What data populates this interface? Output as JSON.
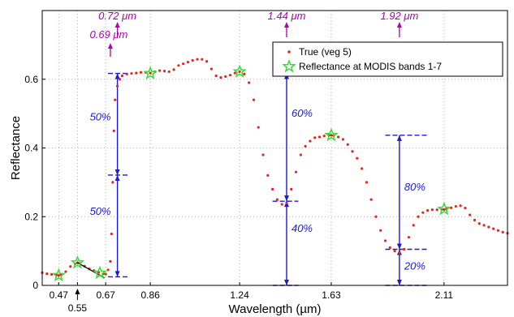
{
  "chart_data": {
    "type": "scatter",
    "xlabel": "Wavelength (µm)",
    "ylabel": "Reflectance",
    "xlim": [
      0.4,
      2.38
    ],
    "ylim": [
      0,
      0.8
    ],
    "x_tick_values": [
      0.47,
      0.55,
      0.67,
      0.86,
      1.24,
      1.63,
      2.11
    ],
    "x_tick_labels": [
      "0.47",
      "0.55",
      "0.67",
      "0.86",
      "1.24",
      "1.63",
      "2.11"
    ],
    "y_ticks": [
      0,
      0.2,
      0.4,
      0.6
    ],
    "y_tick_labels": [
      "0",
      "0.2",
      "0.4",
      "0.6"
    ],
    "grid": true,
    "legend_position": "top-right",
    "legend": [
      "True (veg 5)",
      "Reflectance at MODIS bands 1-7"
    ],
    "series": [
      {
        "name": "True (veg 5)",
        "color": "#e8241c",
        "x": [
          0.4,
          0.42,
          0.44,
          0.46,
          0.47,
          0.48,
          0.5,
          0.52,
          0.54,
          0.55,
          0.56,
          0.58,
          0.6,
          0.62,
          0.64,
          0.66,
          0.67,
          0.68,
          0.69,
          0.695,
          0.7,
          0.705,
          0.71,
          0.72,
          0.73,
          0.74,
          0.76,
          0.78,
          0.8,
          0.82,
          0.84,
          0.86,
          0.88,
          0.9,
          0.92,
          0.94,
          0.96,
          0.98,
          1.0,
          1.02,
          1.04,
          1.06,
          1.08,
          1.1,
          1.12,
          1.14,
          1.16,
          1.18,
          1.2,
          1.22,
          1.24,
          1.26,
          1.28,
          1.3,
          1.32,
          1.34,
          1.36,
          1.38,
          1.4,
          1.42,
          1.44,
          1.46,
          1.48,
          1.5,
          1.52,
          1.54,
          1.56,
          1.58,
          1.6,
          1.62,
          1.63,
          1.64,
          1.66,
          1.68,
          1.7,
          1.72,
          1.74,
          1.76,
          1.78,
          1.8,
          1.82,
          1.84,
          1.86,
          1.88,
          1.9,
          1.92,
          1.94,
          1.96,
          1.98,
          2.0,
          2.02,
          2.04,
          2.06,
          2.08,
          2.1,
          2.11,
          2.12,
          2.14,
          2.16,
          2.18,
          2.2,
          2.22,
          2.24,
          2.26,
          2.28,
          2.3,
          2.32,
          2.34,
          2.36,
          2.38
        ],
        "y": [
          0.037,
          0.034,
          0.032,
          0.03,
          0.029,
          0.031,
          0.04,
          0.055,
          0.063,
          0.066,
          0.064,
          0.056,
          0.048,
          0.043,
          0.038,
          0.034,
          0.033,
          0.045,
          0.07,
          0.15,
          0.3,
          0.45,
          0.54,
          0.58,
          0.6,
          0.61,
          0.615,
          0.617,
          0.618,
          0.62,
          0.62,
          0.618,
          0.622,
          0.625,
          0.624,
          0.622,
          0.628,
          0.64,
          0.645,
          0.65,
          0.655,
          0.658,
          0.658,
          0.652,
          0.63,
          0.61,
          0.605,
          0.608,
          0.612,
          0.618,
          0.622,
          0.615,
          0.59,
          0.54,
          0.46,
          0.38,
          0.32,
          0.28,
          0.25,
          0.236,
          0.24,
          0.28,
          0.33,
          0.38,
          0.405,
          0.42,
          0.43,
          0.432,
          0.435,
          0.437,
          0.437,
          0.436,
          0.432,
          0.425,
          0.41,
          0.39,
          0.37,
          0.34,
          0.3,
          0.25,
          0.2,
          0.16,
          0.13,
          0.11,
          0.1,
          0.095,
          0.105,
          0.14,
          0.175,
          0.2,
          0.212,
          0.218,
          0.22,
          0.22,
          0.221,
          0.221,
          0.222,
          0.226,
          0.23,
          0.232,
          0.225,
          0.205,
          0.19,
          0.18,
          0.175,
          0.17,
          0.165,
          0.16,
          0.155,
          0.152
        ]
      },
      {
        "name": "Reflectance at MODIS bands 1-7",
        "color": "#33dd33",
        "x": [
          0.47,
          0.55,
          0.645,
          0.86,
          1.24,
          1.63,
          2.11
        ],
        "y": [
          0.029,
          0.066,
          0.036,
          0.617,
          0.622,
          0.437,
          0.222
        ]
      }
    ],
    "annotations_top": [
      {
        "label": "0.72 μm",
        "x": 0.72
      },
      {
        "label": "1.44 μm",
        "x": 1.44
      },
      {
        "label": "1.92 μm",
        "x": 1.92
      },
      {
        "label": "0.69 μm",
        "x": 0.69
      }
    ],
    "percent_annotations": [
      {
        "label": "50%",
        "x": 0.72,
        "y": 0.49
      },
      {
        "label": "50%",
        "x": 0.72,
        "y": 0.215
      },
      {
        "label": "60%",
        "x": 1.44,
        "y": 0.5
      },
      {
        "label": "40%",
        "x": 1.44,
        "y": 0.165
      },
      {
        "label": "80%",
        "x": 1.92,
        "y": 0.285
      },
      {
        "label": "20%",
        "x": 1.92,
        "y": 0.055
      }
    ],
    "measure_lines": [
      {
        "x": 0.72,
        "xmin": 0.68,
        "xmax": 0.77,
        "y_high": 0.617,
        "y_mid": 0.321,
        "y_low": 0.025
      },
      {
        "x": 1.44,
        "xmin": 1.38,
        "xmax": 1.49,
        "y_high": 0.617,
        "y_mid": 0.245,
        "y_low": 0.0
      },
      {
        "x": 1.92,
        "xmin": 1.86,
        "xmax": 2.04,
        "y_high": 0.437,
        "y_mid": 0.105,
        "y_low": 0.0
      }
    ],
    "slope_line": {
      "x": [
        0.55,
        0.665
      ],
      "y": [
        0.066,
        0.022
      ]
    }
  }
}
